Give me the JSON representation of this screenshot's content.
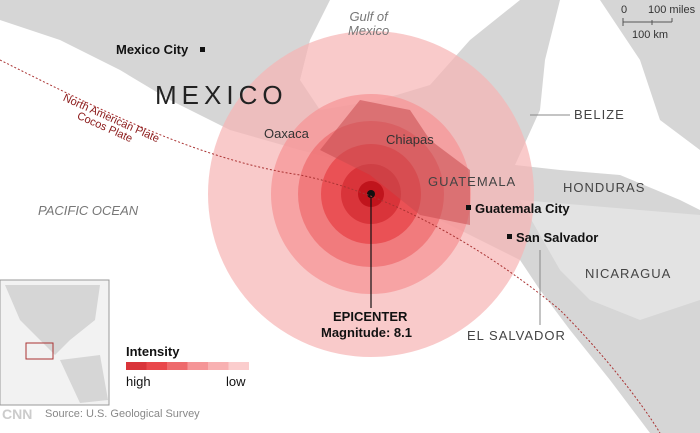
{
  "labels": {
    "gulf": "Gulf of\nMexico",
    "mexico": "MEXICO",
    "mexico_city": "Mexico City",
    "oaxaca": "Oaxaca",
    "chiapas": "Chiapas",
    "guatemala": "GUATEMALA",
    "guatemala_city": "Guatemala City",
    "san_salvador": "San Salvador",
    "belize": "BELIZE",
    "honduras": "HONDURAS",
    "nicaragua": "NICARAGUA",
    "el_salvador": "EL SALVADOR",
    "pacific": "PACIFIC OCEAN",
    "north_american_plate": "North American Plate",
    "cocos_plate": "Cocos Plate"
  },
  "epicenter": {
    "title": "EPICENTER",
    "magnitude": "Magnitude: 8.1"
  },
  "scale": {
    "zero": "0",
    "miles": "100 miles",
    "km": "100 km"
  },
  "legend": {
    "title": "Intensity",
    "high": "high",
    "low": "low",
    "colors": [
      "#d9343a",
      "#e9474b",
      "#ee6a6c",
      "#f59597",
      "#f8b1b2",
      "#fbcdcd"
    ]
  },
  "footer": {
    "logo": "CNN",
    "source": "Source: U.S. Geological Survey"
  },
  "colors": {
    "land": "#d6d6d6",
    "plate_line": "#a33",
    "ring_outer": "#fbcfcf"
  }
}
